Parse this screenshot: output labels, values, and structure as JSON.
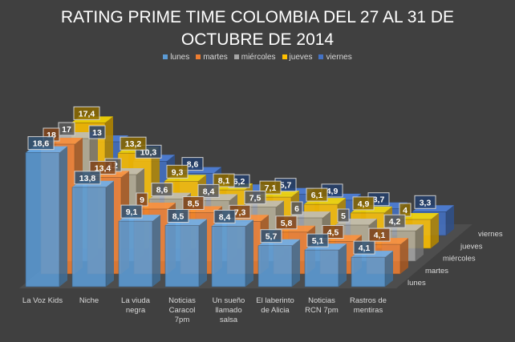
{
  "chart_data": {
    "type": "bar",
    "subtype": "3d-clustered-columns",
    "title": "RATING PRIME TIME COLOMBIA DEL 27 AL 31 DE OCTUBRE DE 2014",
    "title_lines": [
      "RATING PRIME TIME COLOMBIA DEL 27 AL 31 DE",
      "OCTUBRE DE 2014"
    ],
    "categories": [
      [
        "La Voz Kids"
      ],
      [
        "Niche"
      ],
      [
        "La viuda",
        "negra"
      ],
      [
        "Noticias",
        "Caracol",
        "7pm"
      ],
      [
        "Un sueño",
        "llamado",
        "salsa"
      ],
      [
        "El laberinto",
        "de Alicia"
      ],
      [
        "Noticias",
        "RCN 7pm"
      ],
      [
        "Rastros de",
        "mentiras"
      ]
    ],
    "series": [
      {
        "name": "lunes",
        "color": "#5b9bd5",
        "values": [
          18.6,
          13.8,
          9.1,
          8.5,
          8.4,
          5.7,
          5.1,
          4.1
        ],
        "labels": [
          "18,6",
          "13,8",
          "9,1",
          "8,5",
          "8,4",
          "5,7",
          "5,1",
          "4,1"
        ]
      },
      {
        "name": "martes",
        "color": "#ed7d31",
        "values": [
          18,
          13.4,
          9,
          8.5,
          7.3,
          5.8,
          4.5,
          4.1
        ],
        "labels": [
          "18",
          "13,4",
          "9",
          "8,5",
          "7,3",
          "5,8",
          "4,5",
          "4,1"
        ]
      },
      {
        "name": "miércoles",
        "color": "#a5a5a5",
        "values": [
          17,
          12,
          8.6,
          8.4,
          7.5,
          6,
          5,
          4.2
        ],
        "labels": [
          "17",
          "12",
          "8,6",
          "8,4",
          "7,5",
          "6",
          "5",
          "4,2"
        ]
      },
      {
        "name": "jueves",
        "color": "#ffc000",
        "values": [
          17.4,
          13.2,
          9.3,
          8.1,
          7.1,
          6.1,
          4.9,
          4
        ],
        "labels": [
          "17,4",
          "13,2",
          "9,3",
          "8,1",
          "7,1",
          "6,1",
          "4,9",
          "4"
        ]
      },
      {
        "name": "viernes",
        "color": "#4472c4",
        "values": [
          13,
          10.3,
          8.6,
          6.2,
          5.7,
          4.9,
          3.7,
          3.3
        ],
        "labels": [
          "13",
          "10,3",
          "8,6",
          "6,2",
          "5,7",
          "4,9",
          "3,7",
          "3,3"
        ]
      }
    ],
    "legend_position": "top",
    "grid": false,
    "ylim": [
      0,
      20
    ]
  }
}
